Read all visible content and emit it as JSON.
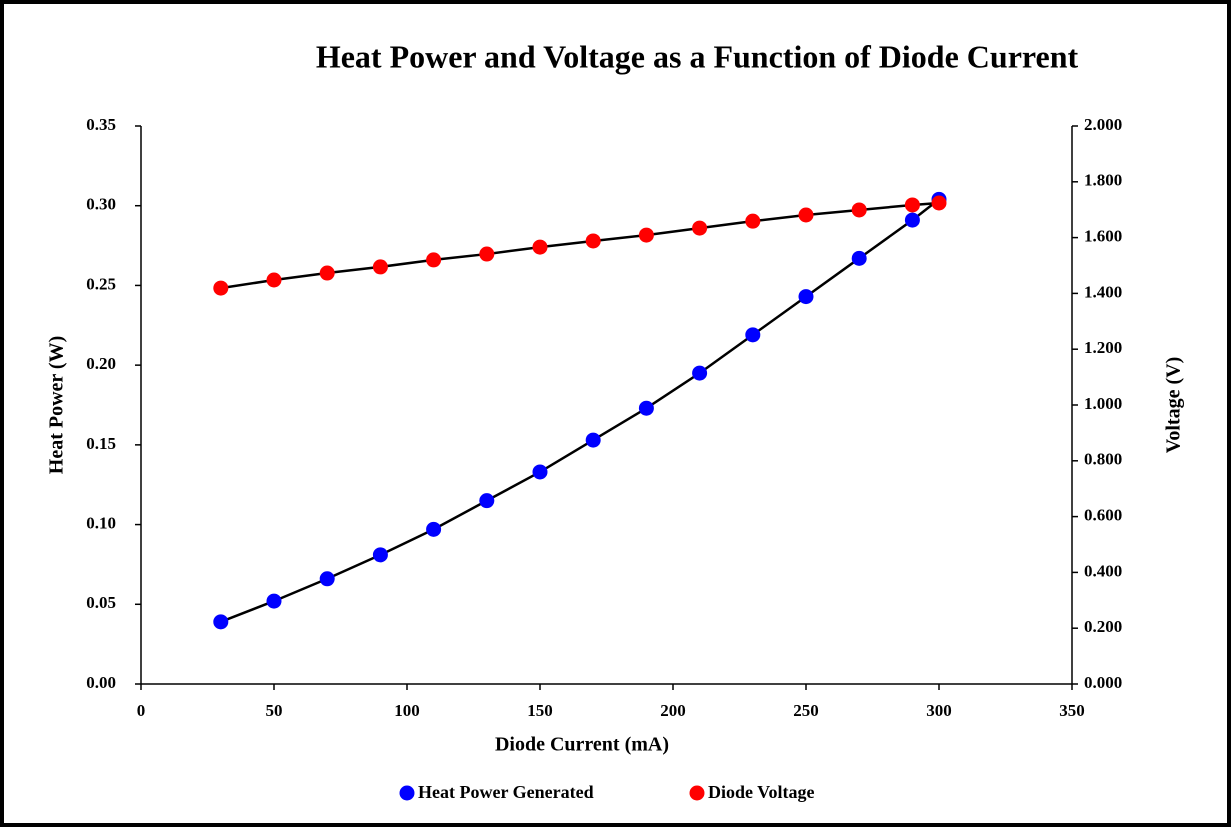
{
  "chart_data": {
    "type": "scatter",
    "title": "Heat Power and Voltage as a Function of Diode Current",
    "x_label": "Diode Current (mA)",
    "y_label": "Heat Power (W)",
    "y2_label": "Voltage (V)",
    "x": [
      30,
      50,
      70,
      90,
      110,
      130,
      150,
      170,
      190,
      210,
      230,
      250,
      270,
      290,
      300
    ],
    "series": [
      {
        "name": "Heat Power Generated",
        "color": "#0000ff",
        "axis": "y",
        "values": [
          0.039,
          0.052,
          0.066,
          0.081,
          0.097,
          0.115,
          0.133,
          0.153,
          0.173,
          0.195,
          0.219,
          0.243,
          0.267,
          0.291,
          0.304
        ]
      },
      {
        "name": "Diode Voltage",
        "color": "#ff0000",
        "axis": "y2",
        "values": [
          1.419,
          1.448,
          1.473,
          1.495,
          1.52,
          1.541,
          1.566,
          1.588,
          1.609,
          1.634,
          1.659,
          1.681,
          1.699,
          1.717,
          1.724
        ]
      }
    ],
    "trendline_color": "#000000",
    "xlim": [
      0,
      350
    ],
    "xticks": [
      0,
      50,
      100,
      150,
      200,
      250,
      300,
      350
    ],
    "ylim": [
      0,
      0.35
    ],
    "yticks": [
      {
        "value": 0,
        "label": "0.00"
      },
      {
        "value": 0.05,
        "label": "0.05"
      },
      {
        "value": 0.1,
        "label": "0.10"
      },
      {
        "value": 0.15,
        "label": "0.15"
      },
      {
        "value": 0.2,
        "label": "0.20"
      },
      {
        "value": 0.25,
        "label": "0.25"
      },
      {
        "value": 0.3,
        "label": "0.30"
      },
      {
        "value": 0.35,
        "label": "0.35"
      }
    ],
    "y2lim": [
      0,
      2
    ],
    "y2ticks": [
      {
        "value": 0,
        "label": "0.000"
      },
      {
        "value": 0.2,
        "label": "0.200"
      },
      {
        "value": 0.4,
        "label": "0.400"
      },
      {
        "value": 0.6,
        "label": "0.600"
      },
      {
        "value": 0.8,
        "label": "0.800"
      },
      {
        "value": 1,
        "label": "1.000"
      },
      {
        "value": 1.2,
        "label": "1.200"
      },
      {
        "value": 1.4,
        "label": "1.400"
      },
      {
        "value": 1.6,
        "label": "1.600"
      },
      {
        "value": 1.8,
        "label": "1.800"
      },
      {
        "value": 2,
        "label": "2.000"
      }
    ],
    "legend": "bottom",
    "grid": false
  }
}
